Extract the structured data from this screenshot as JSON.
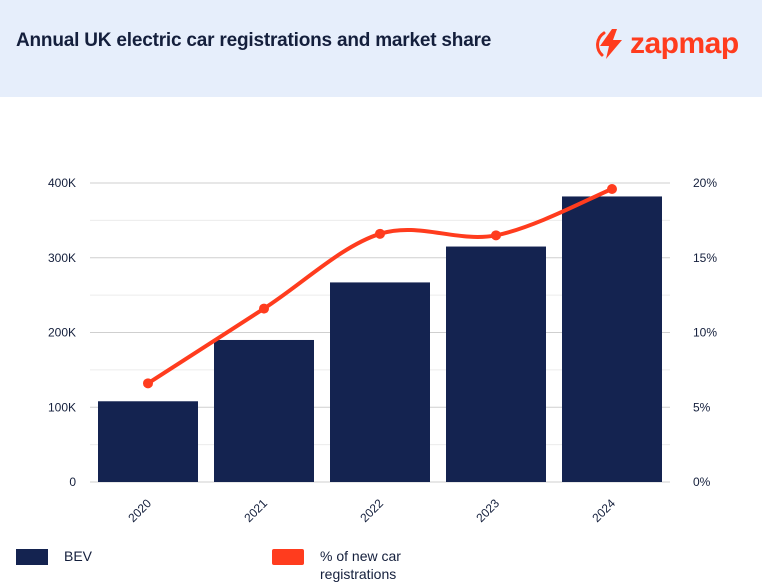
{
  "title": "Annual UK electric car registrations and market share",
  "logo": {
    "text": "zapmap",
    "icon": "zapmap-bolt-icon"
  },
  "colors": {
    "header_bg": "#e6eefb",
    "bar": "#142350",
    "line": "#ff3c1e",
    "text": "#141f3c",
    "grid": "#d9d9d9"
  },
  "legend": [
    {
      "label": "BEV",
      "color": "#142350"
    },
    {
      "label": "% of new car registrations",
      "color": "#ff3c1e"
    }
  ],
  "chart_data": {
    "type": "bar",
    "categories": [
      "2020",
      "2021",
      "2022",
      "2023",
      "2024"
    ],
    "series": [
      {
        "name": "BEV",
        "type": "bar",
        "axis": "left",
        "values": [
          108000,
          190000,
          267000,
          315000,
          382000
        ]
      },
      {
        "name": "% of new car registrations",
        "type": "line",
        "axis": "right",
        "values": [
          6.6,
          11.6,
          16.6,
          16.5,
          19.6
        ]
      }
    ],
    "y_left": {
      "lim": [
        0,
        400000
      ],
      "ticks": [
        0,
        100000,
        200000,
        300000,
        400000
      ],
      "tick_labels": [
        "0",
        "100K",
        "200K",
        "300K",
        "400K"
      ]
    },
    "y_right": {
      "lim": [
        0,
        20
      ],
      "ticks": [
        0,
        5,
        10,
        15,
        20
      ],
      "tick_labels": [
        "0%",
        "5%",
        "10%",
        "15%",
        "20%"
      ]
    },
    "title": "Annual UK electric car registrations and market share",
    "xlabel": "",
    "ylabel": "",
    "grid": true,
    "legend_position": "bottom"
  }
}
